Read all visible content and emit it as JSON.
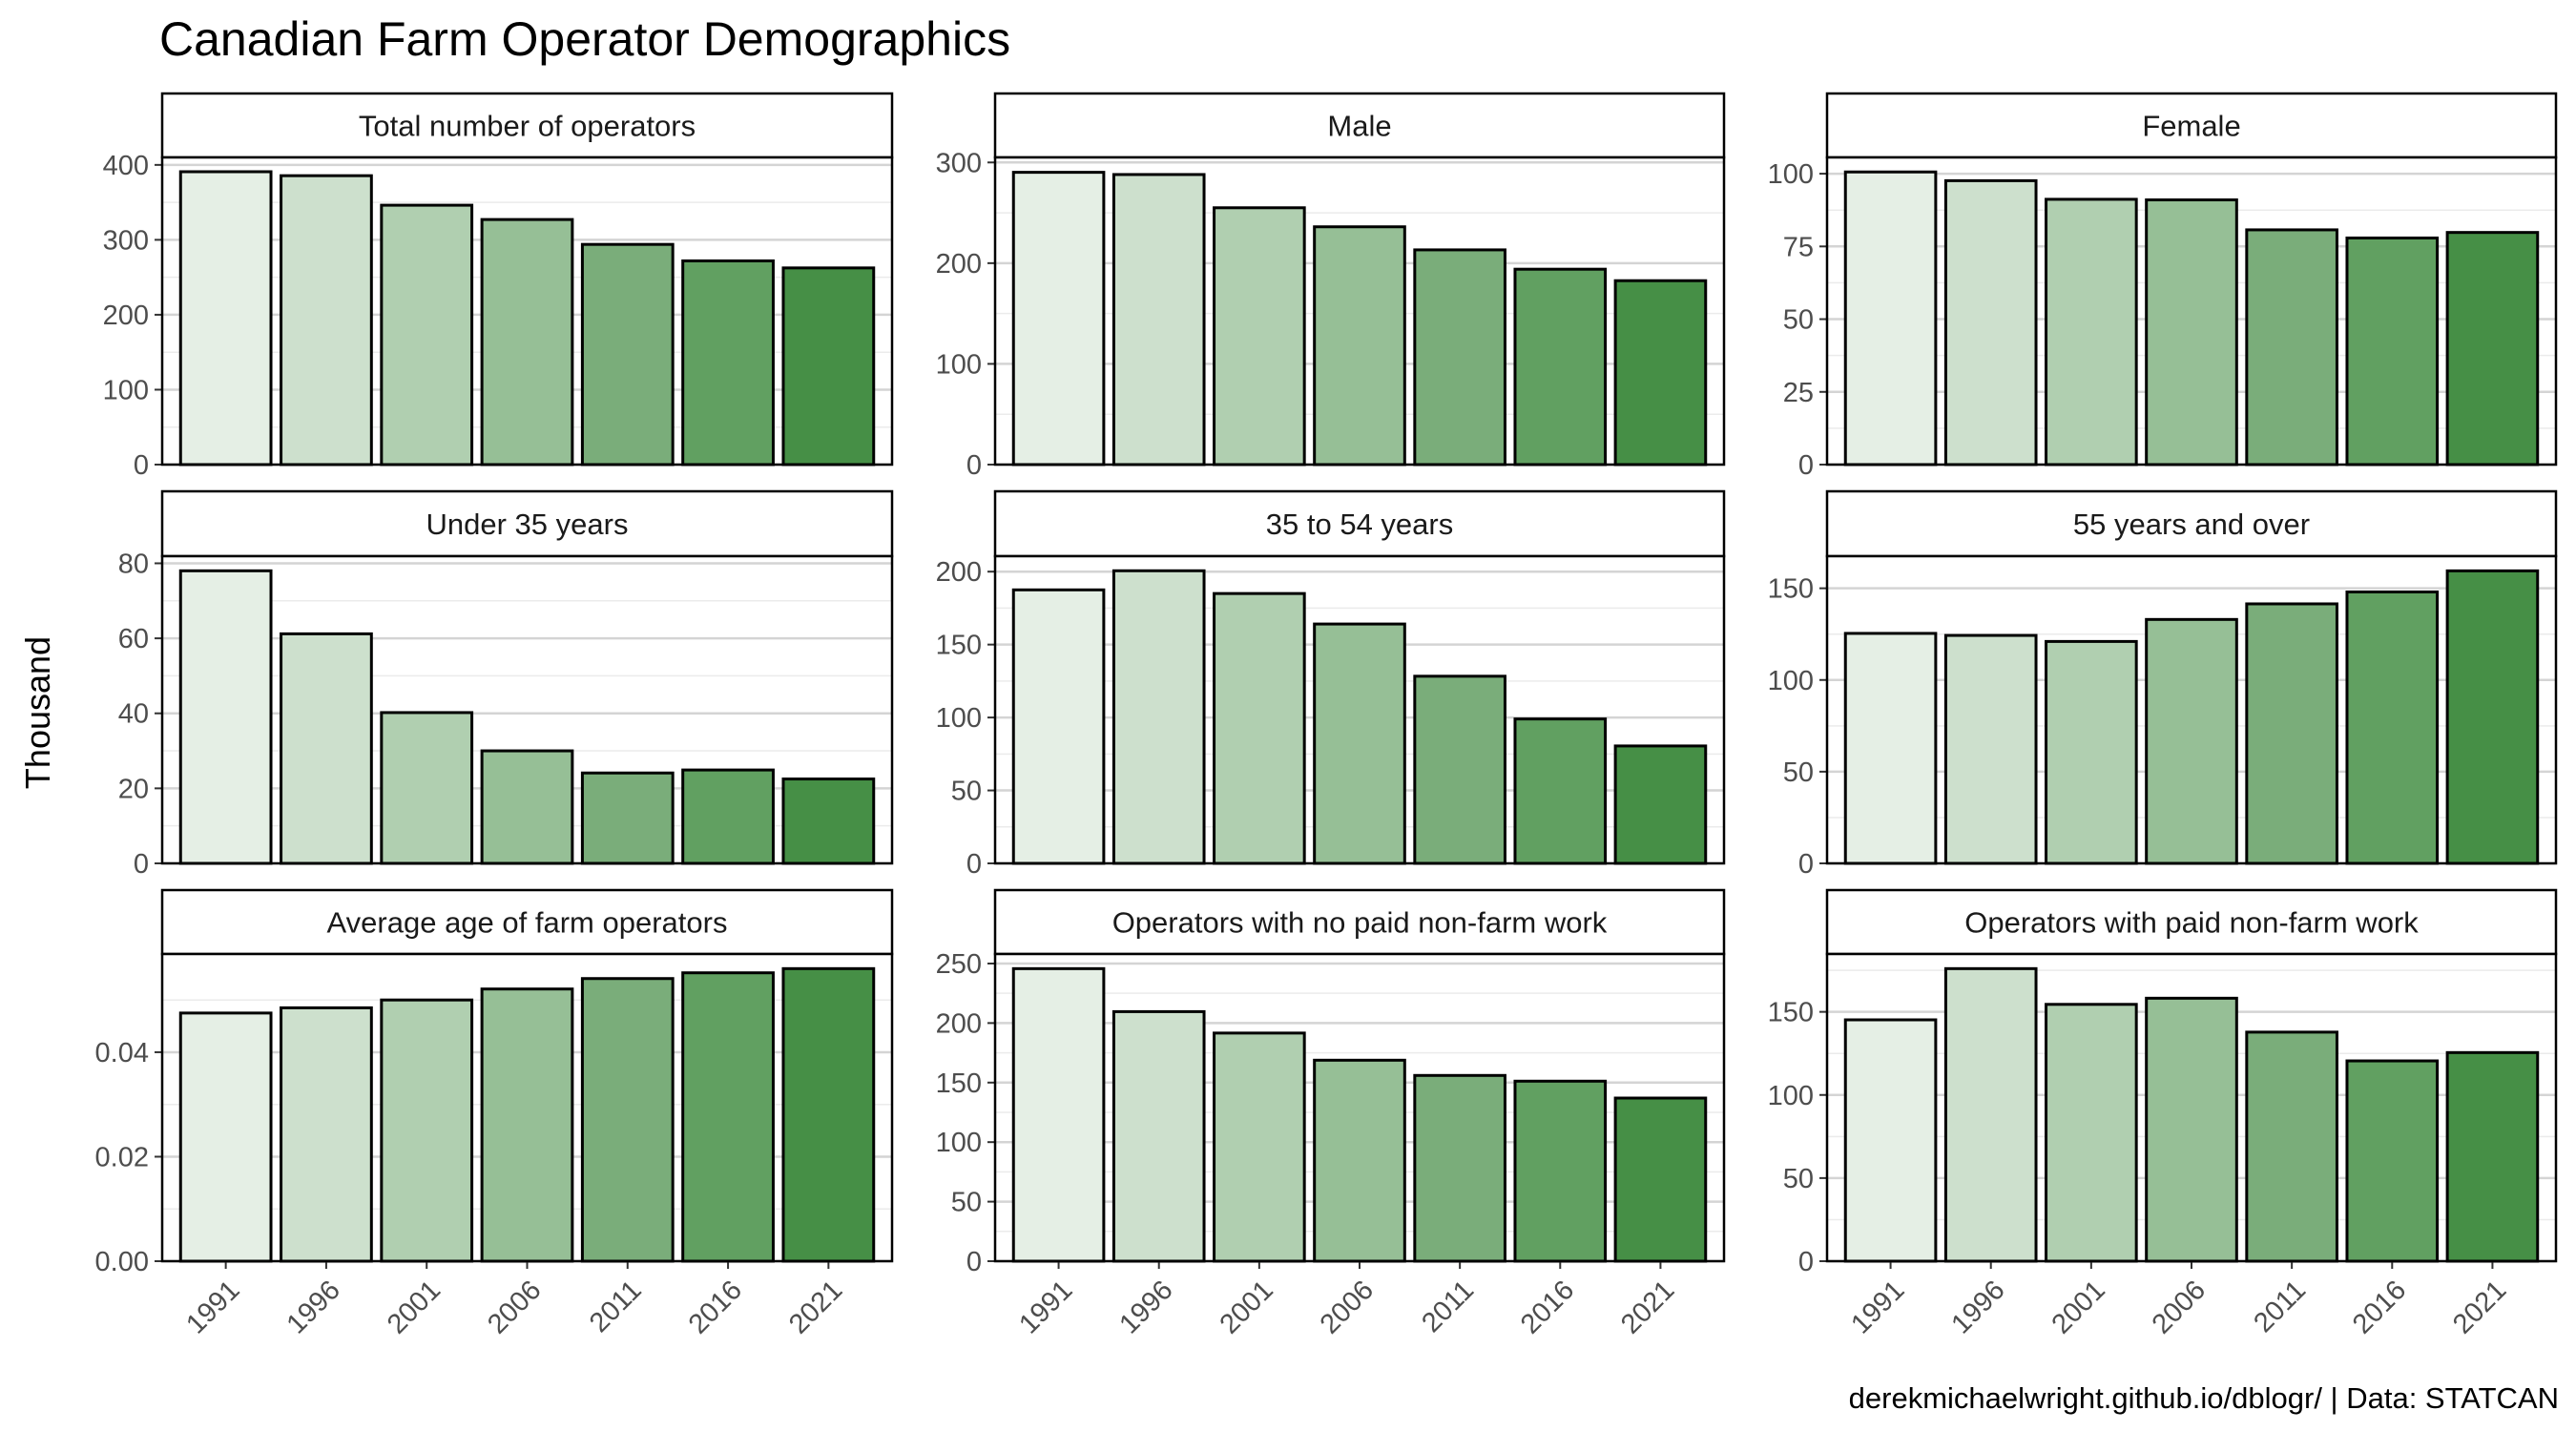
{
  "title": "Canadian Farm Operator Demographics",
  "ylabel": "Thousand",
  "caption": "derekmichaelwright.github.io/dblogr/ | Data: STATCAN",
  "colors": [
    "#e5efe5",
    "#cde0cd",
    "#b0cfb0",
    "#96bf96",
    "#7aad7a",
    "#61a061",
    "#468f46"
  ],
  "chart_data": [
    {
      "type": "bar",
      "title": "Total number of operators",
      "categories": [
        "1991",
        "1996",
        "2001",
        "2006",
        "2011",
        "2016",
        "2021"
      ],
      "values": [
        390.9,
        385.6,
        346.2,
        327.1,
        293.9,
        271.9,
        262.5
      ],
      "ylim": [
        0,
        410
      ],
      "yticks": [
        0,
        100,
        200,
        300,
        400
      ],
      "ytick_labels": [
        "0",
        "100",
        "200",
        "300",
        "400"
      ]
    },
    {
      "type": "bar",
      "title": "Male",
      "categories": [
        "1991",
        "1996",
        "2001",
        "2006",
        "2011",
        "2016",
        "2021"
      ],
      "values": [
        290.2,
        288.0,
        255.0,
        236.1,
        213.2,
        194.0,
        182.6
      ],
      "ylim": [
        0,
        305
      ],
      "yticks": [
        0,
        100,
        200,
        300
      ],
      "ytick_labels": [
        "0",
        "100",
        "200",
        "300"
      ]
    },
    {
      "type": "bar",
      "title": "Female",
      "categories": [
        "1991",
        "1996",
        "2001",
        "2006",
        "2011",
        "2016",
        "2021"
      ],
      "values": [
        100.6,
        97.6,
        91.2,
        91.0,
        80.7,
        77.9,
        79.8
      ],
      "ylim": [
        0,
        105.6
      ],
      "yticks": [
        0,
        25,
        50,
        75,
        100
      ],
      "ytick_labels": [
        "0",
        "25",
        "50",
        "75",
        "100"
      ]
    },
    {
      "type": "bar",
      "title": "Under 35 years",
      "categories": [
        "1991",
        "1996",
        "2001",
        "2006",
        "2011",
        "2016",
        "2021"
      ],
      "values": [
        78.0,
        61.2,
        40.2,
        30.0,
        24.1,
        24.9,
        22.5
      ],
      "ylim": [
        0,
        81.9
      ],
      "yticks": [
        0,
        20,
        40,
        60,
        80
      ],
      "ytick_labels": [
        "0",
        "20",
        "40",
        "60",
        "80"
      ]
    },
    {
      "type": "bar",
      "title": "35 to 54 years",
      "categories": [
        "1991",
        "1996",
        "2001",
        "2006",
        "2011",
        "2016",
        "2021"
      ],
      "values": [
        187.5,
        200.6,
        185.0,
        164.1,
        128.3,
        99.0,
        80.5
      ],
      "ylim": [
        0,
        210.6
      ],
      "yticks": [
        0,
        50,
        100,
        150,
        200
      ],
      "ytick_labels": [
        "0",
        "50",
        "100",
        "150",
        "200"
      ]
    },
    {
      "type": "bar",
      "title": "55 years and over",
      "categories": [
        "1991",
        "1996",
        "2001",
        "2006",
        "2011",
        "2016",
        "2021"
      ],
      "values": [
        125.4,
        124.3,
        121.0,
        133.0,
        141.5,
        148.0,
        159.5
      ],
      "ylim": [
        0,
        167.5
      ],
      "yticks": [
        0,
        50,
        100,
        150
      ],
      "ytick_labels": [
        "0",
        "50",
        "100",
        "150"
      ]
    },
    {
      "type": "bar",
      "title": "Average age of farm operators",
      "categories": [
        "1991",
        "1996",
        "2001",
        "2006",
        "2011",
        "2016",
        "2021"
      ],
      "values": [
        0.0475,
        0.0485,
        0.05,
        0.0521,
        0.0541,
        0.0552,
        0.056
      ],
      "ylim": [
        0,
        0.0588
      ],
      "yticks": [
        0,
        0.02,
        0.04
      ],
      "ytick_labels": [
        "0.00",
        "0.02",
        "0.04"
      ]
    },
    {
      "type": "bar",
      "title": "Operators with no paid non-farm work",
      "categories": [
        "1991",
        "1996",
        "2001",
        "2006",
        "2011",
        "2016",
        "2021"
      ],
      "values": [
        245.7,
        209.6,
        191.6,
        168.8,
        156.0,
        151.2,
        137.0
      ],
      "ylim": [
        0,
        258.0
      ],
      "yticks": [
        0,
        50,
        100,
        150,
        200,
        250
      ],
      "ytick_labels": [
        "0",
        "50",
        "100",
        "150",
        "200",
        "250"
      ]
    },
    {
      "type": "bar",
      "title": "Operators with paid non-farm work",
      "categories": [
        "1991",
        "1996",
        "2001",
        "2006",
        "2011",
        "2016",
        "2021"
      ],
      "values": [
        145.2,
        176.0,
        154.5,
        158.2,
        137.8,
        120.5,
        125.5
      ],
      "ylim": [
        0,
        184.8
      ],
      "yticks": [
        0,
        50,
        100,
        150
      ],
      "ytick_labels": [
        "0",
        "50",
        "100",
        "150"
      ]
    }
  ]
}
